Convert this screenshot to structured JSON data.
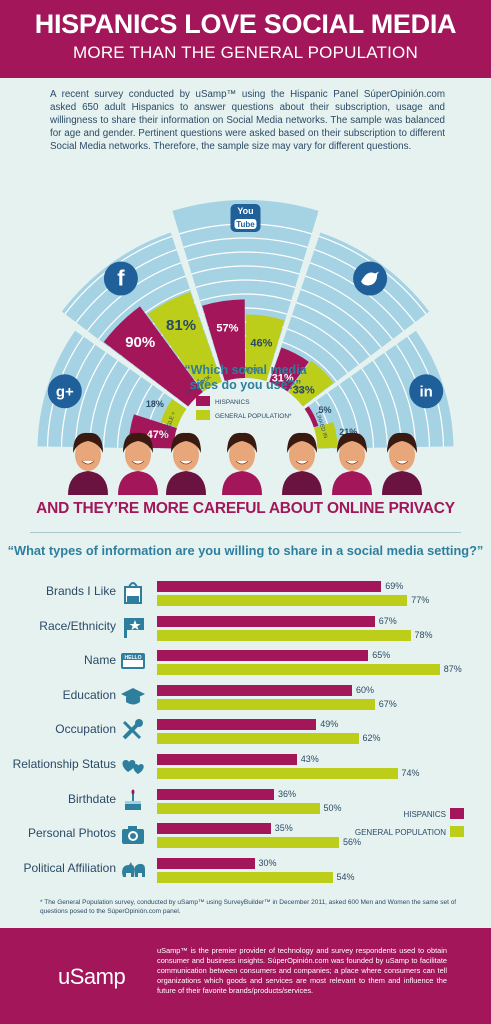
{
  "header": {
    "title": "HISPANICS LOVE SOCIAL MEDIA",
    "subtitle": "MORE THAN THE GENERAL POPULATION"
  },
  "intro": "A recent survey conducted by uSamp™ using the Hispanic Panel SúperOpinión.com asked 650 adult Hispanics to answer questions about their subscription, usage and willingness to share their information on Social Media networks. The sample was balanced for age and gender. Pertinent questions were asked based on their subscription to different Social Media networks. Therefore, the sample size may vary for different questions.",
  "colors": {
    "hispanics": "#a3165a",
    "general": "#bccd1a",
    "ring": "#a6d3e4",
    "ring_line": "#ffffff"
  },
  "chart_data": [
    {
      "type": "bar",
      "title": "Which social media sites do you use?",
      "categories": [
        "GOOGLE +",
        "FACEBOOK",
        "YOU TUBE",
        "TWITTER",
        "LINKED IN"
      ],
      "icons": [
        "google-plus-icon",
        "facebook-icon",
        "youtube-icon",
        "twitter-icon",
        "linkedin-icon"
      ],
      "icon_text": [
        "g+",
        "f",
        "You Tube",
        "",
        "in"
      ],
      "series": [
        {
          "name": "HISPANICS",
          "values": [
            47,
            90,
            57,
            31,
            5
          ]
        },
        {
          "name": "GENERAL POPULATION*",
          "values": [
            18,
            81,
            46,
            33,
            21
          ]
        }
      ],
      "ylim": [
        0,
        100
      ]
    },
    {
      "type": "bar",
      "title": "What types of information are you willing to share in a social media setting?",
      "categories": [
        "Brands I Like",
        "Race/Ethnicity",
        "Name",
        "Education",
        "Occupation",
        "Relationship Status",
        "Birthdate",
        "Personal Photos",
        "Political Affiliation"
      ],
      "icons": [
        "shopping-bag-icon",
        "flag-icon",
        "name-tag-icon",
        "graduation-cap-icon",
        "tools-icon",
        "hearts-icon",
        "birthday-cake-icon",
        "camera-icon",
        "donkey-elephant-icon"
      ],
      "name_tag_text": "HELLO",
      "series": [
        {
          "name": "HISPANICS",
          "values": [
            69,
            67,
            65,
            60,
            49,
            43,
            36,
            35,
            30
          ]
        },
        {
          "name": "GENERAL POPULATION",
          "values": [
            77,
            78,
            87,
            67,
            62,
            74,
            50,
            56,
            54
          ]
        }
      ],
      "xlim": [
        0,
        100
      ]
    }
  ],
  "wheel_center_question": "“Which social media sites do you use?”",
  "privacy_title": "AND THEY’RE MORE CAREFUL ABOUT ONLINE PRIVACY",
  "privacy_question": "“What types of information are you willing to share in a social media setting?”",
  "footnote": "* The General Population survey, conducted by uSamp™ using SurveyBuilder™ in December 2011, asked 600 Men and Women the same set of questions posed to the SúperOpinión.com panel.",
  "footer": {
    "logo": "uSamp",
    "about": "uSamp™ is the premier provider of technology and survey respondents used to obtain consumer and business insights. SúperOpinión.com was founded by uSamp to facilitate communication between consumers and companies; a place where consumers can tell organizations which goods and services are most relevant to them and influence the future of their favorite brands/products/services."
  }
}
